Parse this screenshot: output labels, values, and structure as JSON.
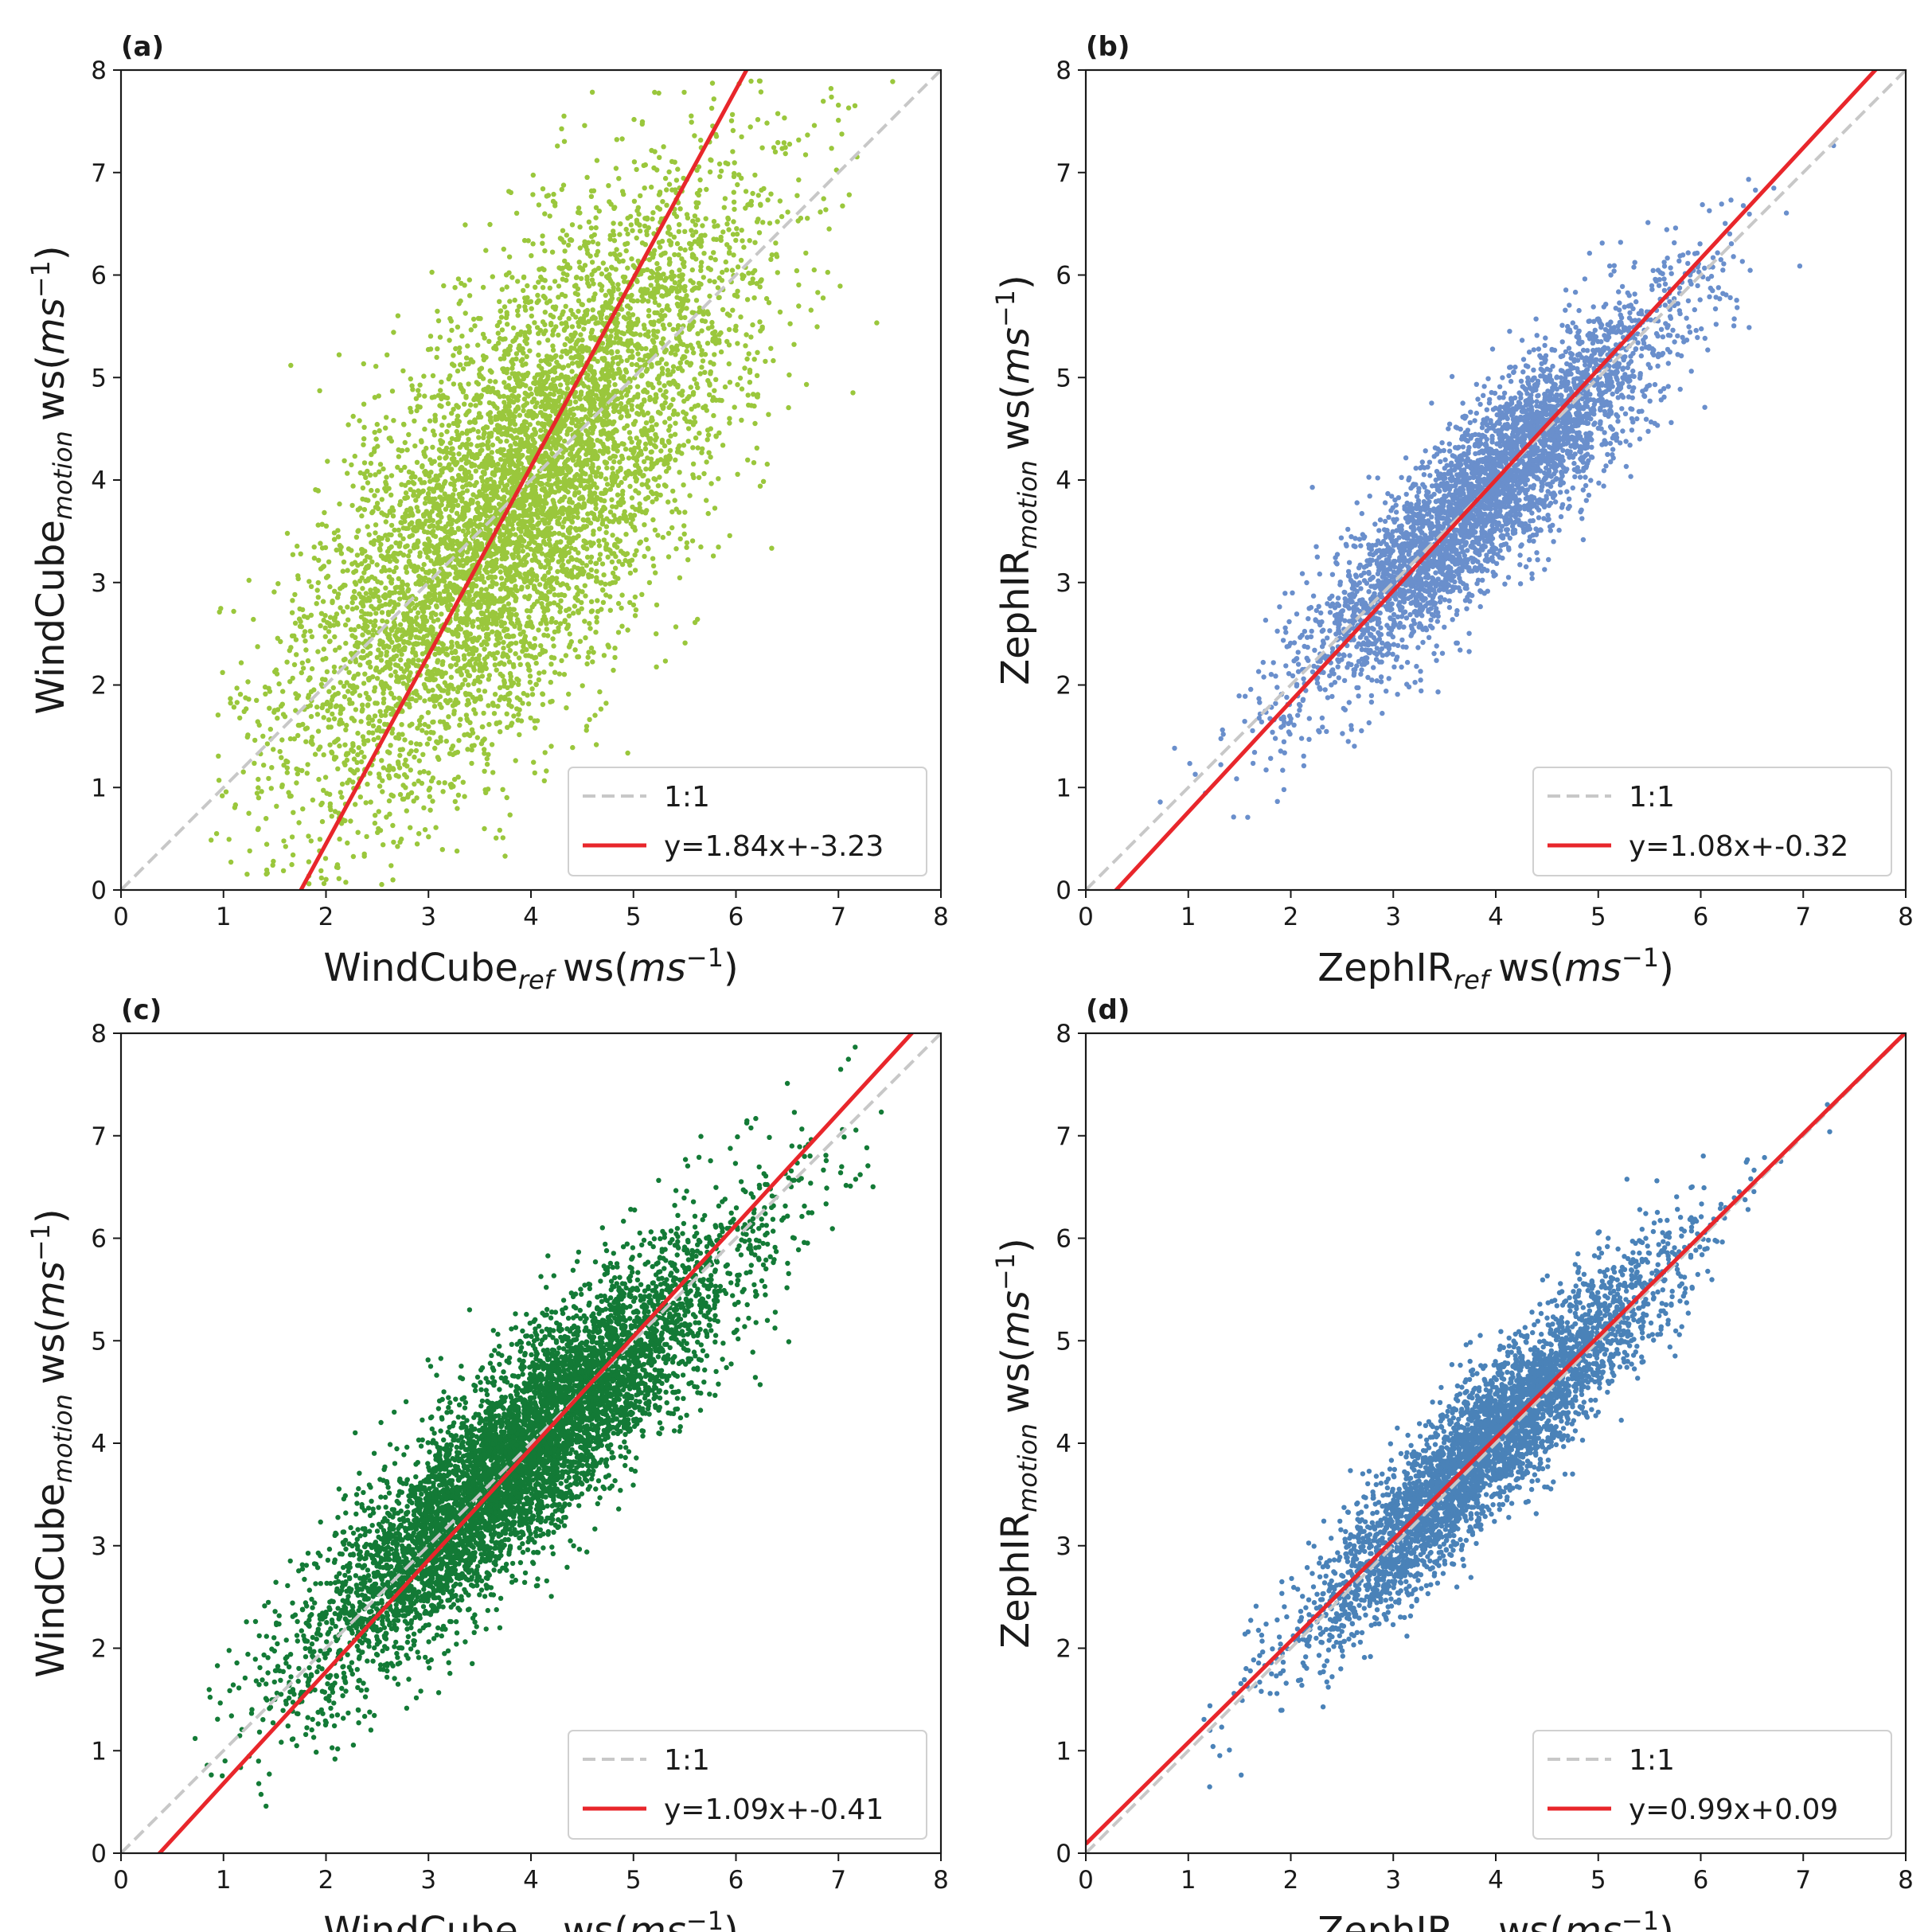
{
  "figure": {
    "background": "#ffffff",
    "reference_line_color": "#c8c8c8",
    "fit_line_color": "#e8262b"
  },
  "chart_data": [
    {
      "type": "scatter",
      "panel_label": "(a)",
      "xlabel": {
        "base": "WindCube",
        "sub": "ref",
        "unit_prefix": "ws(",
        "unit_var": "ms",
        "unit_sup": "−1",
        "unit_suffix": ")"
      },
      "ylabel": {
        "base": "WindCube",
        "sub": "motion",
        "unit_prefix": "ws(",
        "unit_var": "ms",
        "unit_sup": "−1",
        "unit_suffix": ")"
      },
      "xlim": [
        0,
        8
      ],
      "ylim": [
        0,
        8
      ],
      "xticks": [
        "0",
        "1",
        "2",
        "3",
        "4",
        "5",
        "6",
        "7",
        "8"
      ],
      "yticks": [
        "0",
        "1",
        "2",
        "3",
        "4",
        "5",
        "6",
        "7",
        "8"
      ],
      "point_color": "#9ac73c",
      "fit": {
        "slope": 1.84,
        "intercept": -3.23
      },
      "legend": [
        {
          "label": "1:1",
          "style": "dashed-gray"
        },
        {
          "label": "y=1.84x+-3.23",
          "style": "solid-red"
        }
      ],
      "legend_position": "bottom-right",
      "cloud": {
        "n": 6500,
        "x_mean": 3.9,
        "x_sd": 1.1,
        "y_slope": 1.0,
        "y_intercept": -0.05,
        "y_noise_sd": 1.05,
        "seed": 11
      }
    },
    {
      "type": "scatter",
      "panel_label": "(b)",
      "xlabel": {
        "base": "ZephIR",
        "sub": "ref",
        "unit_prefix": "ws(",
        "unit_var": "ms",
        "unit_sup": "−1",
        "unit_suffix": ")"
      },
      "ylabel": {
        "base": "ZephIR",
        "sub": "motion",
        "unit_prefix": "ws(",
        "unit_var": "ms",
        "unit_sup": "−1",
        "unit_suffix": ")"
      },
      "xlim": [
        0,
        8
      ],
      "ylim": [
        0,
        8
      ],
      "xticks": [
        "0",
        "1",
        "2",
        "3",
        "4",
        "5",
        "6",
        "7",
        "8"
      ],
      "yticks": [
        "0",
        "1",
        "2",
        "3",
        "4",
        "5",
        "6",
        "7",
        "8"
      ],
      "point_color": "#6a8fcc",
      "fit": {
        "slope": 1.08,
        "intercept": -0.32
      },
      "legend": [
        {
          "label": "1:1",
          "style": "dashed-gray"
        },
        {
          "label": "y=1.08x+-0.32",
          "style": "solid-red"
        }
      ],
      "legend_position": "bottom-right",
      "cloud": {
        "n": 4000,
        "x_mean": 3.9,
        "x_sd": 0.9,
        "y_slope": 0.95,
        "y_intercept": 0.15,
        "y_noise_sd": 0.42,
        "seed": 23
      }
    },
    {
      "type": "scatter",
      "panel_label": "(c)",
      "xlabel": {
        "base": "WindCube",
        "sub": "ref",
        "unit_prefix": "ws(",
        "unit_var": "ms",
        "unit_sup": "−1",
        "unit_suffix": ")"
      },
      "ylabel": {
        "base": "WindCube",
        "sub": "motion",
        "unit_prefix": "ws(",
        "unit_var": "ms",
        "unit_sup": "−1",
        "unit_suffix": ")"
      },
      "xlim": [
        0,
        8
      ],
      "ylim": [
        0,
        8
      ],
      "xticks": [
        "0",
        "1",
        "2",
        "3",
        "4",
        "5",
        "6",
        "7",
        "8"
      ],
      "yticks": [
        "0",
        "1",
        "2",
        "3",
        "4",
        "5",
        "6",
        "7",
        "8"
      ],
      "point_color": "#137a36",
      "fit": {
        "slope": 1.09,
        "intercept": -0.41
      },
      "legend": [
        {
          "label": "1:1",
          "style": "dashed-gray"
        },
        {
          "label": "y=1.09x+-0.41",
          "style": "solid-red"
        }
      ],
      "legend_position": "bottom-right",
      "cloud": {
        "n": 6500,
        "x_mean": 3.9,
        "x_sd": 1.05,
        "y_slope": 0.92,
        "y_intercept": 0.3,
        "y_noise_sd": 0.5,
        "seed": 37
      }
    },
    {
      "type": "scatter",
      "panel_label": "(d)",
      "xlabel": {
        "base": "ZephIR",
        "sub": "ref",
        "unit_prefix": "ws(",
        "unit_var": "ms",
        "unit_sup": "−1",
        "unit_suffix": ")"
      },
      "ylabel": {
        "base": "ZephIR",
        "sub": "motion",
        "unit_prefix": "ws(",
        "unit_var": "ms",
        "unit_sup": "−1",
        "unit_suffix": ")"
      },
      "xlim": [
        0,
        8
      ],
      "ylim": [
        0,
        8
      ],
      "xticks": [
        "0",
        "1",
        "2",
        "3",
        "4",
        "5",
        "6",
        "7",
        "8"
      ],
      "yticks": [
        "0",
        "1",
        "2",
        "3",
        "4",
        "5",
        "6",
        "7",
        "8"
      ],
      "point_color": "#4a82b8",
      "fit": {
        "slope": 0.99,
        "intercept": 0.09
      },
      "legend": [
        {
          "label": "1:1",
          "style": "dashed-gray"
        },
        {
          "label": "y=0.99x+0.09",
          "style": "solid-red"
        }
      ],
      "legend_position": "bottom-right",
      "cloud": {
        "n": 4000,
        "x_mean": 3.9,
        "x_sd": 0.9,
        "y_slope": 0.99,
        "y_intercept": 0.09,
        "y_noise_sd": 0.36,
        "seed": 51
      }
    }
  ]
}
